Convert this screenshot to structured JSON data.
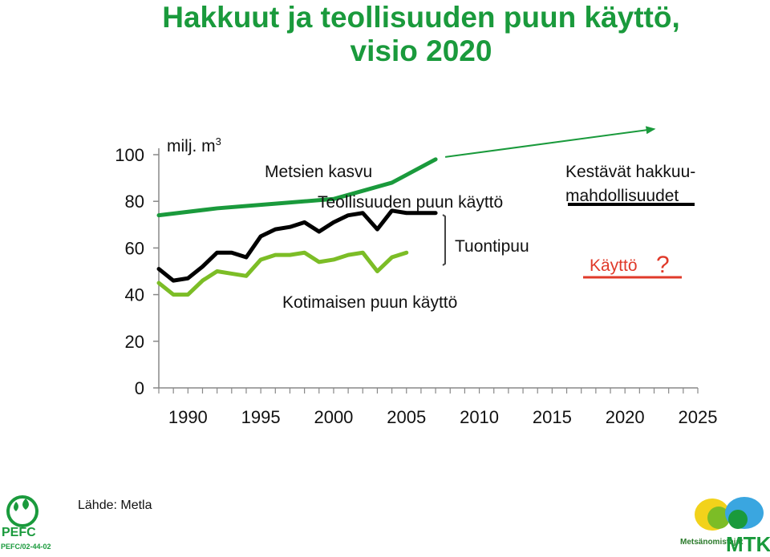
{
  "title_line1": "Hakkuut ja teollisuuden puun käyttö,",
  "title_line2": "visio 2020",
  "unit_label": "milj. m",
  "unit_sup": "3",
  "source": "Lähde: Metla",
  "pefc_text": "PEFC",
  "pefc_code": "PEFC/02-44-02",
  "mtk_subtitle": "Metsänomistajat",
  "mtk_text": "MTK",
  "colors": {
    "title": "#1a9a3c",
    "metsien_kasvu": "#1a9a3c",
    "teollisuus": "#000000",
    "kotimainen": "#7cbd26",
    "kaytto_line": "#e03a2a",
    "kaytto_question": "#e03a2a"
  },
  "chart_data": {
    "type": "line",
    "ylim": [
      0,
      100
    ],
    "xlim": [
      1988,
      2025
    ],
    "yticks": [
      0,
      20,
      40,
      60,
      80,
      100
    ],
    "xticks": [
      1990,
      1995,
      2000,
      2005,
      2010,
      2015,
      2020,
      2025
    ],
    "grid": false,
    "series": [
      {
        "name": "Metsien kasvu",
        "x": [
          1988,
          1992,
          1996,
          2000,
          2004,
          2007
        ],
        "values": [
          74,
          77,
          79,
          81,
          88,
          98
        ]
      },
      {
        "name": "Teollisuuden puun käyttö",
        "x": [
          1988,
          1989,
          1990,
          1991,
          1992,
          1993,
          1994,
          1995,
          1996,
          1997,
          1998,
          1999,
          2000,
          2001,
          2002,
          2003,
          2004,
          2005,
          2006,
          2007
        ],
        "values": [
          51,
          46,
          47,
          52,
          58,
          58,
          56,
          65,
          68,
          69,
          71,
          67,
          71,
          74,
          75,
          68,
          76,
          75,
          75,
          75
        ]
      },
      {
        "name": "Kotimaisen puun käyttö",
        "x": [
          1988,
          1989,
          1990,
          1991,
          1992,
          1993,
          1994,
          1995,
          1996,
          1997,
          1998,
          1999,
          2000,
          2001,
          2002,
          2003,
          2004,
          2005
        ],
        "values": [
          45,
          40,
          40,
          46,
          50,
          49,
          48,
          55,
          57,
          57,
          58,
          54,
          55,
          57,
          58,
          50,
          56,
          58
        ]
      }
    ],
    "projection": {
      "label": "",
      "x": [
        2007,
        2022
      ],
      "values": [
        99,
        111
      ]
    },
    "annotations": {
      "metsien_kasvu": "Metsien kasvu",
      "teollisuus": "Teollisuuden puun käyttö",
      "tuontipuu": "Tuontipuu",
      "kotimainen": "Kotimaisen puun käyttö",
      "kestavat": "Kestävät hakkuu-",
      "mahdollisuudet": "mahdollisuudet",
      "kaytto": "Käyttö",
      "question": "?"
    }
  }
}
